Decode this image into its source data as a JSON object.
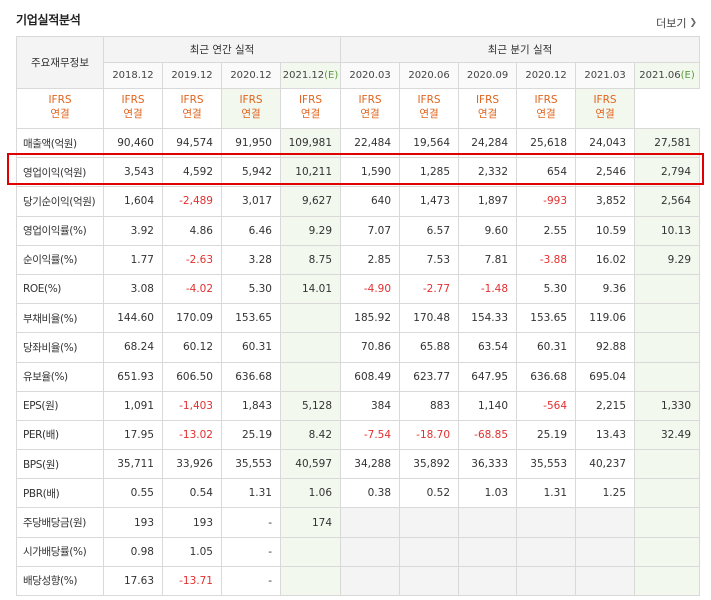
{
  "header": {
    "title": "기업실적분석",
    "more": "더보기",
    "more_icon": "chevron-right-icon"
  },
  "table": {
    "corner": "주요재무정보",
    "group_annual": "최근 연간 실적",
    "group_quarterly": "최근 분기 실적",
    "periods": [
      {
        "label": "2018.12",
        "est": false
      },
      {
        "label": "2019.12",
        "est": false
      },
      {
        "label": "2020.12",
        "est": false
      },
      {
        "label": "2021.12",
        "est": true,
        "est_mark": "(E)"
      },
      {
        "label": "2020.03",
        "est": false
      },
      {
        "label": "2020.06",
        "est": false
      },
      {
        "label": "2020.09",
        "est": false
      },
      {
        "label": "2020.12",
        "est": false
      },
      {
        "label": "2021.03",
        "est": false
      },
      {
        "label": "2021.06",
        "est": true,
        "est_mark": "(E)"
      }
    ],
    "ifrs": [
      "IFRS",
      "연결"
    ],
    "rows": [
      {
        "label": "매출액(억원)",
        "values": [
          "90,460",
          "94,574",
          "91,950",
          "109,981",
          "22,484",
          "19,564",
          "24,284",
          "25,618",
          "24,043",
          "27,581"
        ]
      },
      {
        "label": "영업이익(억원)",
        "highlight": true,
        "values": [
          "3,543",
          "4,592",
          "5,942",
          "10,211",
          "1,590",
          "1,285",
          "2,332",
          "654",
          "2,546",
          "2,794"
        ]
      },
      {
        "label": "당기순이익(억원)",
        "values": [
          "1,604",
          "-2,489",
          "3,017",
          "9,627",
          "640",
          "1,473",
          "1,897",
          "-993",
          "3,852",
          "2,564"
        ]
      },
      {
        "label": "영업이익률(%)",
        "values": [
          "3.92",
          "4.86",
          "6.46",
          "9.29",
          "7.07",
          "6.57",
          "9.60",
          "2.55",
          "10.59",
          "10.13"
        ]
      },
      {
        "label": "순이익률(%)",
        "values": [
          "1.77",
          "-2.63",
          "3.28",
          "8.75",
          "2.85",
          "7.53",
          "7.81",
          "-3.88",
          "16.02",
          "9.29"
        ]
      },
      {
        "label": "ROE(%)",
        "values": [
          "3.08",
          "-4.02",
          "5.30",
          "14.01",
          "-4.90",
          "-2.77",
          "-1.48",
          "5.30",
          "9.36",
          ""
        ]
      },
      {
        "label": "부채비율(%)",
        "values": [
          "144.60",
          "170.09",
          "153.65",
          "",
          "185.92",
          "170.48",
          "154.33",
          "153.65",
          "119.06",
          ""
        ]
      },
      {
        "label": "당좌비율(%)",
        "values": [
          "68.24",
          "60.12",
          "60.31",
          "",
          "70.86",
          "65.88",
          "63.54",
          "60.31",
          "92.88",
          ""
        ]
      },
      {
        "label": "유보율(%)",
        "values": [
          "651.93",
          "606.50",
          "636.68",
          "",
          "608.49",
          "623.77",
          "647.95",
          "636.68",
          "695.04",
          ""
        ]
      },
      {
        "label": "EPS(원)",
        "values": [
          "1,091",
          "-1,403",
          "1,843",
          "5,128",
          "384",
          "883",
          "1,140",
          "-564",
          "2,215",
          "1,330"
        ]
      },
      {
        "label": "PER(배)",
        "values": [
          "17.95",
          "-13.02",
          "25.19",
          "8.42",
          "-7.54",
          "-18.70",
          "-68.85",
          "25.19",
          "13.43",
          "32.49"
        ]
      },
      {
        "label": "BPS(원)",
        "values": [
          "35,711",
          "33,926",
          "35,553",
          "40,597",
          "34,288",
          "35,892",
          "36,333",
          "35,553",
          "40,237",
          ""
        ]
      },
      {
        "label": "PBR(배)",
        "values": [
          "0.55",
          "0.54",
          "1.31",
          "1.06",
          "0.38",
          "0.52",
          "1.03",
          "1.31",
          "1.25",
          ""
        ]
      },
      {
        "label": "주당배당금(원)",
        "values": [
          "193",
          "193",
          "-",
          "174",
          null,
          null,
          null,
          null,
          null,
          null
        ]
      },
      {
        "label": "시가배당률(%)",
        "values": [
          "0.98",
          "1.05",
          "-",
          "",
          null,
          null,
          null,
          null,
          null,
          null
        ]
      },
      {
        "label": "배당성향(%)",
        "values": [
          "17.63",
          "-13.71",
          "-",
          "",
          null,
          null,
          null,
          null,
          null,
          null
        ]
      }
    ]
  },
  "colors": {
    "negative": "#e23030",
    "ifrs": "#e0641e",
    "estimate_bg": "#f2f8ee",
    "highlight_border": "#e00000"
  }
}
